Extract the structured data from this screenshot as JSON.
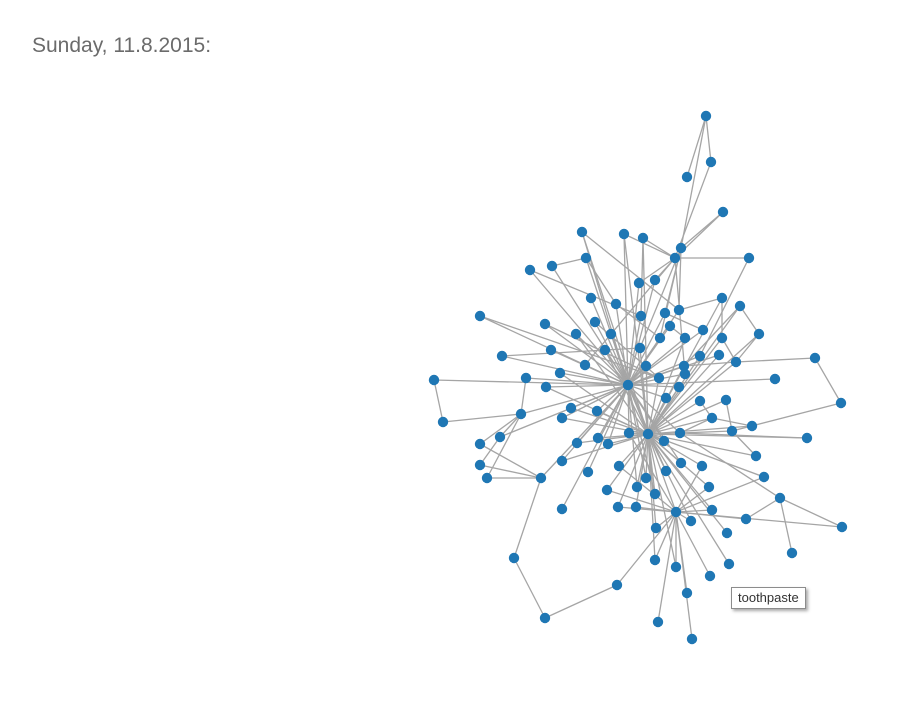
{
  "header": {
    "title": "Sunday, 11.8.2015:"
  },
  "graph": {
    "node_color": "#1f77b4",
    "edge_color": "#a5a5a5"
  },
  "tooltip": {
    "text": "toothpaste"
  }
}
